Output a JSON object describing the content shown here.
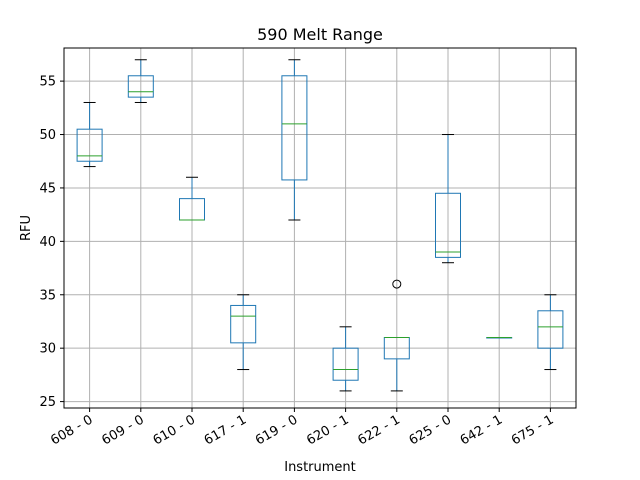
{
  "colors": {
    "box": "#1f77b4",
    "median": "#2ca02c",
    "whisker": "#1f77b4",
    "cap": "#000000",
    "grid": "#b0b0b0",
    "axes": "#000000",
    "background": "#ffffff"
  },
  "chart_data": {
    "type": "box",
    "title": "590 Melt Range",
    "xlabel": "Instrument",
    "ylabel": "RFU",
    "ylim": [
      24.4,
      58.1
    ],
    "yticks": [
      25,
      30,
      35,
      40,
      45,
      50,
      55
    ],
    "grid": true,
    "x_tick_rotation_deg": 30,
    "categories": [
      "608 - 0",
      "609 - 0",
      "610 - 0",
      "617 - 1",
      "619 - 0",
      "620 - 1",
      "622 - 1",
      "625 - 0",
      "642 - 1",
      "675 - 1"
    ],
    "boxes": [
      {
        "label": "608 - 0",
        "min": 47,
        "q1": 47.5,
        "median": 48,
        "q3": 50.5,
        "max": 53,
        "outliers": []
      },
      {
        "label": "609 - 0",
        "min": 53,
        "q1": 53.5,
        "median": 54,
        "q3": 55.5,
        "max": 57,
        "outliers": []
      },
      {
        "label": "610 - 0",
        "min": 42,
        "q1": 42,
        "median": 42,
        "q3": 44,
        "max": 46,
        "outliers": []
      },
      {
        "label": "617 - 1",
        "min": 28,
        "q1": 30.5,
        "median": 33,
        "q3": 34,
        "max": 35,
        "outliers": []
      },
      {
        "label": "619 - 0",
        "min": 42,
        "q1": 45.75,
        "median": 51,
        "q3": 55.5,
        "max": 57,
        "outliers": []
      },
      {
        "label": "620 - 1",
        "min": 26,
        "q1": 27,
        "median": 28,
        "q3": 30,
        "max": 32,
        "outliers": []
      },
      {
        "label": "622 - 1",
        "min": 26,
        "q1": 29,
        "median": 31,
        "q3": 31,
        "max": 31,
        "outliers": [
          36
        ]
      },
      {
        "label": "625 - 0",
        "min": 38,
        "q1": 38.5,
        "median": 39,
        "q3": 44.5,
        "max": 50,
        "outliers": []
      },
      {
        "label": "642 - 1",
        "min": 31,
        "q1": 31,
        "median": 31,
        "q3": 31,
        "max": 31,
        "outliers": []
      },
      {
        "label": "675 - 1",
        "min": 28,
        "q1": 30,
        "median": 32,
        "q3": 33.5,
        "max": 35,
        "outliers": []
      }
    ]
  }
}
